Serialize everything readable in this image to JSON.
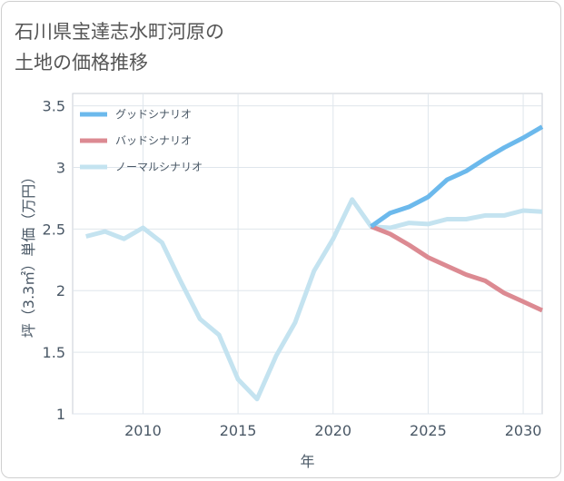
{
  "title": "石川県宝達志水町河原の\n土地の価格推移",
  "chart_data": {
    "type": "line",
    "title": "石川県宝達志水町河原の土地の価格推移",
    "xlabel": "年",
    "ylabel": "坪（3.3㎡）単価（万円）",
    "xlim": [
      2006.3,
      2031
    ],
    "ylim": [
      1,
      3.6
    ],
    "xticks": [
      2010,
      2015,
      2020,
      2025,
      2030
    ],
    "yticks": [
      1,
      1.5,
      2,
      2.5,
      3,
      3.5
    ],
    "grid": true,
    "legend_position": "top-left",
    "series": [
      {
        "name": "グッドシナリオ",
        "color": "#6cb9ec",
        "x": [
          2022,
          2023,
          2024,
          2025,
          2026,
          2027,
          2028,
          2029,
          2030,
          2031
        ],
        "y": [
          2.52,
          2.63,
          2.68,
          2.76,
          2.9,
          2.97,
          3.07,
          3.16,
          3.24,
          3.33
        ]
      },
      {
        "name": "バッドシナリオ",
        "color": "#dc8a92",
        "x": [
          2022,
          2023,
          2024,
          2025,
          2026,
          2027,
          2028,
          2029,
          2030,
          2031
        ],
        "y": [
          2.52,
          2.46,
          2.37,
          2.27,
          2.2,
          2.13,
          2.08,
          1.98,
          1.91,
          1.84
        ]
      },
      {
        "name": "ノーマルシナリオ",
        "color": "#c4e3f0",
        "x": [
          2007,
          2008,
          2009,
          2010,
          2011,
          2012,
          2013,
          2014,
          2015,
          2016,
          2017,
          2018,
          2019,
          2020,
          2021,
          2022,
          2023,
          2024,
          2025,
          2026,
          2027,
          2028,
          2029,
          2030,
          2031
        ],
        "y": [
          2.44,
          2.48,
          2.42,
          2.51,
          2.39,
          2.07,
          1.77,
          1.64,
          1.28,
          1.12,
          1.47,
          1.74,
          2.16,
          2.42,
          2.74,
          2.52,
          2.51,
          2.55,
          2.54,
          2.58,
          2.58,
          2.61,
          2.61,
          2.65,
          2.64
        ]
      }
    ]
  }
}
